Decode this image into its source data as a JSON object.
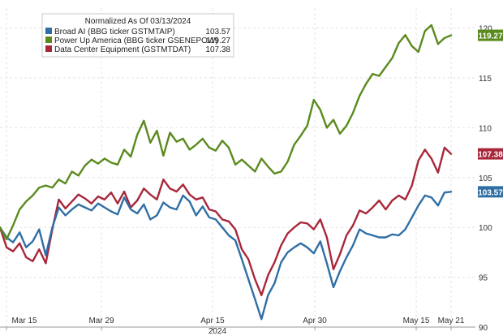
{
  "chart_data": {
    "type": "line",
    "legend": {
      "title": "Normalized As Of 03/13/2024",
      "placement": "top-left"
    },
    "x": {
      "ticks": [
        "Mar 15",
        "Mar 29",
        "Apr 15",
        "Apr 30",
        "May 15",
        "May 21"
      ],
      "year_label": "2024"
    },
    "y": {
      "ylim": [
        90,
        122
      ],
      "ticks": [
        90,
        95,
        100,
        105,
        110,
        115,
        120
      ],
      "side": "right"
    },
    "grid": true,
    "series": [
      {
        "name": "Broad AI (BBG ticker GSTMTAIP)",
        "legend_value": "103.57",
        "badge": "103.57",
        "color": "#2f6fa5",
        "values": [
          100.0,
          99.0,
          98.5,
          99.5,
          98.0,
          98.6,
          99.8,
          97.2,
          100.0,
          102.0,
          101.2,
          101.8,
          102.3,
          102.0,
          101.7,
          102.4,
          102.0,
          101.6,
          101.3,
          103.0,
          101.8,
          101.4,
          102.3,
          100.8,
          101.2,
          102.5,
          102.0,
          101.8,
          103.2,
          102.6,
          101.2,
          102.1,
          101.0,
          100.8,
          100.0,
          99.2,
          98.7,
          96.8,
          94.8,
          92.8,
          90.8,
          93.2,
          94.4,
          96.5,
          97.5,
          98.0,
          98.4,
          98.0,
          97.4,
          98.6,
          96.4,
          94.0,
          95.6,
          97.0,
          98.2,
          99.8,
          99.4,
          99.2,
          99.0,
          99.0,
          99.3,
          99.2,
          99.8,
          101.0,
          102.2,
          103.2,
          103.0,
          102.2,
          103.5,
          103.57
        ]
      },
      {
        "name": "Power Up America (BBG ticker GSENEPOW)",
        "legend_value": "119.27",
        "badge": "119.27",
        "color": "#5a8a1c",
        "values": [
          100.0,
          98.8,
          100.2,
          101.8,
          102.6,
          103.2,
          104.0,
          104.2,
          104.0,
          104.8,
          104.4,
          105.6,
          105.2,
          106.2,
          106.8,
          106.4,
          106.9,
          106.5,
          106.3,
          107.8,
          107.1,
          109.3,
          110.7,
          108.5,
          109.7,
          107.2,
          109.5,
          108.6,
          108.9,
          107.8,
          108.3,
          108.9,
          108.0,
          107.7,
          108.7,
          108.0,
          106.3,
          106.8,
          106.2,
          105.6,
          106.9,
          106.1,
          105.4,
          105.6,
          106.6,
          108.3,
          109.2,
          110.2,
          112.8,
          111.8,
          110.0,
          110.8,
          109.4,
          110.2,
          111.5,
          113.2,
          114.4,
          115.4,
          115.2,
          116.1,
          117.0,
          118.5,
          119.3,
          118.2,
          117.6,
          119.7,
          120.3,
          118.4,
          119.0,
          119.27
        ]
      },
      {
        "name": "Data Center Equipment (GSTMTDAT)",
        "legend_value": "107.38",
        "badge": "107.38",
        "color": "#a8273a",
        "values": [
          100.0,
          98.0,
          97.6,
          98.4,
          97.0,
          96.6,
          97.8,
          96.4,
          99.8,
          102.8,
          101.9,
          102.6,
          103.3,
          102.9,
          102.4,
          103.1,
          102.8,
          103.5,
          102.4,
          103.6,
          102.0,
          102.7,
          103.9,
          103.3,
          102.8,
          104.8,
          103.9,
          103.6,
          104.3,
          103.3,
          102.8,
          103.0,
          101.8,
          101.6,
          100.8,
          100.6,
          99.8,
          97.8,
          96.8,
          94.8,
          93.2,
          95.2,
          96.5,
          98.2,
          99.4,
          100.0,
          100.5,
          100.4,
          99.8,
          100.8,
          99.0,
          95.8,
          97.3,
          99.2,
          100.2,
          101.7,
          101.4,
          102.0,
          102.7,
          101.8,
          102.7,
          103.2,
          102.8,
          104.2,
          106.7,
          107.8,
          106.9,
          105.5,
          108.0,
          107.38
        ]
      }
    ]
  }
}
